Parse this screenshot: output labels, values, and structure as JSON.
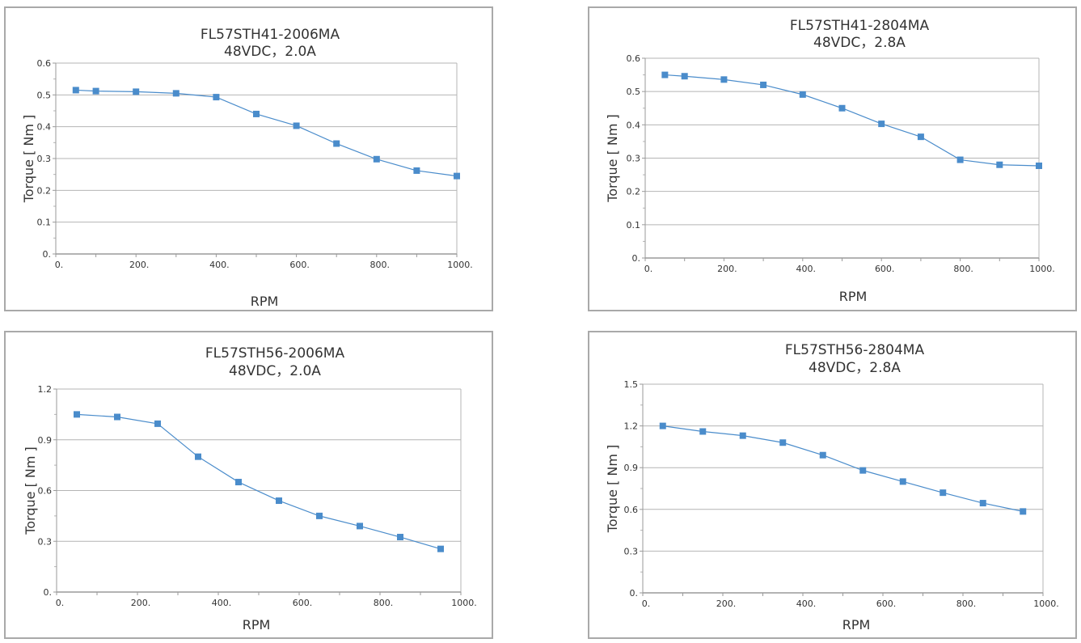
{
  "colors": {
    "series": "#4a8ccb",
    "grid": "#b4b4b4",
    "axis": "#9a9a9a",
    "border": "#a9a9a9"
  },
  "chart_data": [
    {
      "type": "line",
      "title": "FL57STH41-2006MA",
      "subtitle": "48VDC，2.0A",
      "xlabel": "RPM",
      "ylabel": "Torque [ Nm ]",
      "xlim": [
        0,
        1000
      ],
      "ylim": [
        0,
        0.6
      ],
      "xticks": [
        0,
        200,
        400,
        600,
        800,
        1000
      ],
      "xtick_labels": [
        "0.",
        "200.",
        "400.",
        "600.",
        "800.",
        "1000."
      ],
      "yticks": [
        0,
        0.1,
        0.2,
        0.3,
        0.4,
        0.5,
        0.6
      ],
      "ytick_labels": [
        "0.",
        "0.1",
        "0.2",
        "0.3",
        "0.4",
        "0.5",
        "0.6"
      ],
      "grid": true,
      "marker": "square",
      "x": [
        50,
        100,
        200,
        300,
        400,
        500,
        600,
        700,
        800,
        900,
        1000
      ],
      "y": [
        0.515,
        0.512,
        0.51,
        0.505,
        0.493,
        0.44,
        0.403,
        0.347,
        0.298,
        0.262,
        0.245
      ]
    },
    {
      "type": "line",
      "title": "FL57STH41-2804MA",
      "subtitle": "48VDC，2.8A",
      "xlabel": "RPM",
      "ylabel": "Torque [ Nm ]",
      "xlim": [
        0,
        1000
      ],
      "ylim": [
        0,
        0.6
      ],
      "xticks": [
        0,
        200,
        400,
        600,
        800,
        1000
      ],
      "xtick_labels": [
        "0.",
        "200.",
        "400.",
        "600.",
        "800.",
        "1000."
      ],
      "yticks": [
        0,
        0.1,
        0.2,
        0.3,
        0.4,
        0.5,
        0.6
      ],
      "ytick_labels": [
        "0.",
        "0.1",
        "0.2",
        "0.3",
        "0.4",
        "0.5",
        "0.6"
      ],
      "grid": true,
      "marker": "square",
      "x": [
        50,
        100,
        200,
        300,
        400,
        500,
        600,
        700,
        800,
        900,
        1000
      ],
      "y": [
        0.55,
        0.546,
        0.536,
        0.52,
        0.491,
        0.45,
        0.403,
        0.364,
        0.295,
        0.28,
        0.277
      ]
    },
    {
      "type": "line",
      "title": "FL57STH56-2006MA",
      "subtitle": "48VDC，2.0A",
      "xlabel": "RPM",
      "ylabel": "Torque [ Nm ]",
      "xlim": [
        0,
        1000
      ],
      "ylim": [
        0,
        1.2
      ],
      "xticks": [
        0,
        200,
        400,
        600,
        800,
        1000
      ],
      "xtick_labels": [
        "0.",
        "200.",
        "400.",
        "600.",
        "800.",
        "1000."
      ],
      "yticks": [
        0,
        0.3,
        0.6,
        0.9,
        1.2
      ],
      "ytick_labels": [
        "0.",
        "0.3",
        "0.6",
        "0.9",
        "1.2"
      ],
      "grid": true,
      "marker": "square",
      "x": [
        50,
        150,
        250,
        350,
        450,
        550,
        650,
        750,
        850,
        950
      ],
      "y": [
        1.05,
        1.035,
        0.995,
        0.8,
        0.65,
        0.54,
        0.45,
        0.39,
        0.325,
        0.255
      ]
    },
    {
      "type": "line",
      "title": "FL57STH56-2804MA",
      "subtitle": "48VDC，2.8A",
      "xlabel": "RPM",
      "ylabel": "Torque [ Nm ]",
      "xlim": [
        0,
        1000
      ],
      "ylim": [
        0,
        1.5
      ],
      "xticks": [
        0,
        200,
        400,
        600,
        800,
        1000
      ],
      "xtick_labels": [
        "0.",
        "200.",
        "400.",
        "600.",
        "800.",
        "1000."
      ],
      "yticks": [
        0,
        0.3,
        0.6,
        0.9,
        1.2,
        1.5
      ],
      "ytick_labels": [
        "0.",
        "0.3",
        "0.6",
        "0.9",
        "1.2",
        "1.5"
      ],
      "grid": true,
      "marker": "square",
      "x": [
        50,
        150,
        250,
        350,
        450,
        550,
        650,
        750,
        850,
        950
      ],
      "y": [
        1.2,
        1.16,
        1.13,
        1.08,
        0.99,
        0.88,
        0.8,
        0.72,
        0.645,
        0.585
      ]
    }
  ]
}
